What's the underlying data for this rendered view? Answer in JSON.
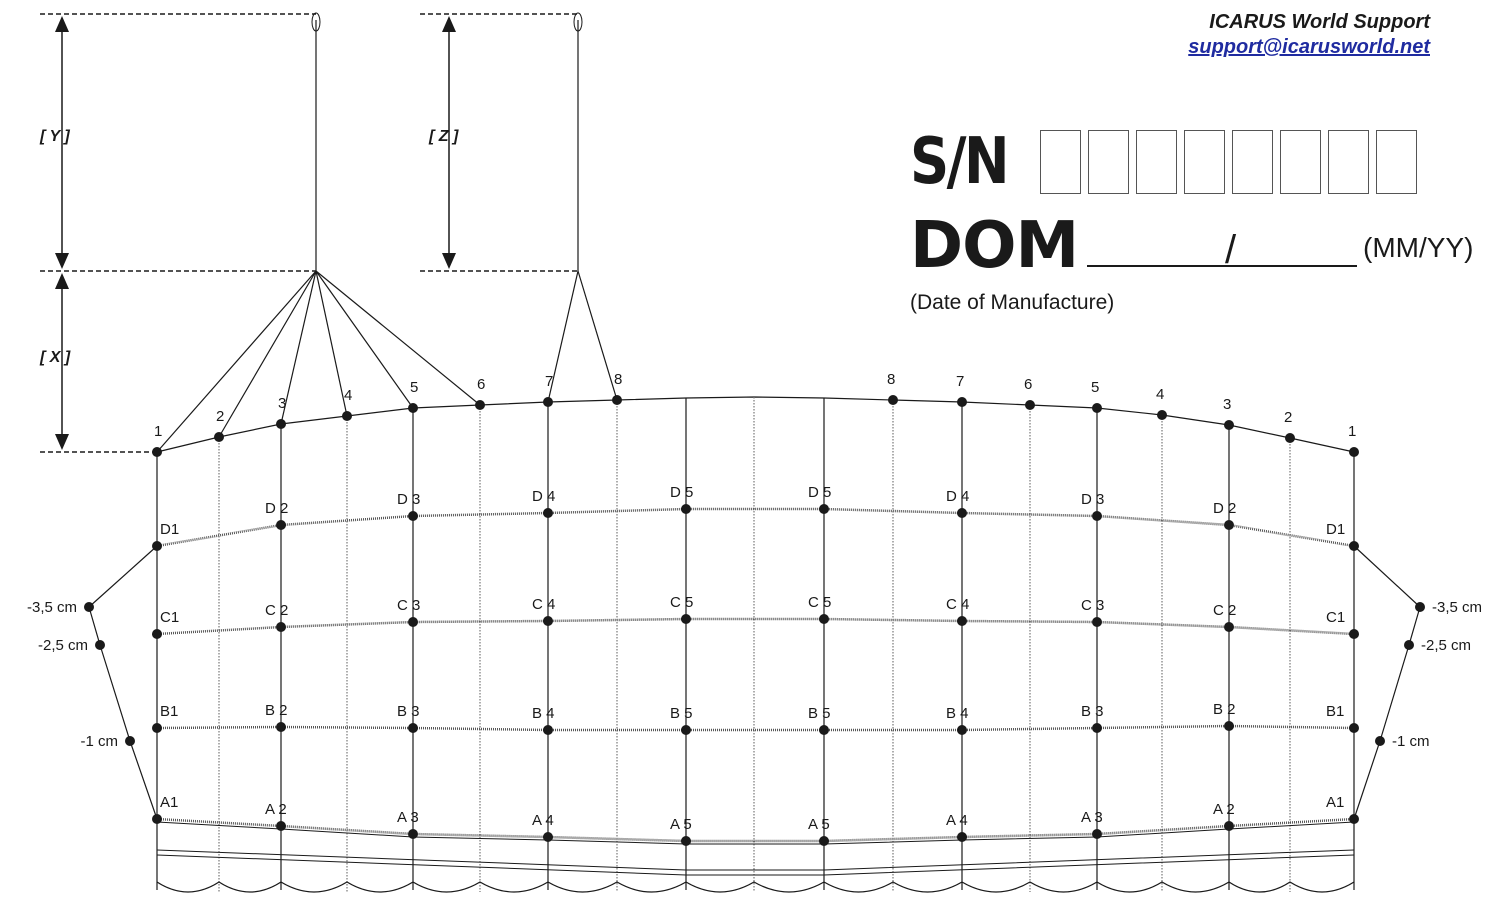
{
  "header": {
    "support_name": "ICARUS World Support",
    "support_email": "support@icarusworld.net"
  },
  "serial": {
    "label": "S/N",
    "box_count": 8,
    "values": [
      "",
      "",
      "",
      "",
      "",
      "",
      "",
      ""
    ]
  },
  "dom": {
    "label": "DOM",
    "separator": "/",
    "format": "(MM/YY)",
    "description": "(Date of Manufacture)"
  },
  "dimensions": {
    "y": "[ Y ]",
    "z": "[ Z ]",
    "x": "[ X ]"
  },
  "side_markers": [
    "-3,5 cm",
    "-2,5 cm",
    "-1 cm"
  ],
  "top_numbers_left": [
    "1",
    "2",
    "3",
    "4",
    "5",
    "6",
    "7",
    "8"
  ],
  "top_numbers_right": [
    "8",
    "7",
    "6",
    "5",
    "4",
    "3",
    "2",
    "1"
  ],
  "rows": [
    {
      "letter": "D",
      "left": [
        "D1",
        "D 2",
        "D 3",
        "D 4",
        "D 5"
      ],
      "right": [
        "D 5",
        "D 4",
        "D 3",
        "D 2",
        "D1"
      ]
    },
    {
      "letter": "C",
      "left": [
        "C1",
        "C 2",
        "C 3",
        "C 4",
        "C 5"
      ],
      "right": [
        "C 5",
        "C 4",
        "C 3",
        "C 2",
        "C1"
      ]
    },
    {
      "letter": "B",
      "left": [
        "B1",
        "B 2",
        "B 3",
        "B 4",
        "B 5"
      ],
      "right": [
        "B 5",
        "B 4",
        "B 3",
        "B 2",
        "B1"
      ]
    },
    {
      "letter": "A",
      "left": [
        "A1",
        "A 2",
        "A 3",
        "A 4",
        "A 5"
      ],
      "right": [
        "A 5",
        "A 4",
        "A 3",
        "A 2",
        "A1"
      ]
    }
  ]
}
